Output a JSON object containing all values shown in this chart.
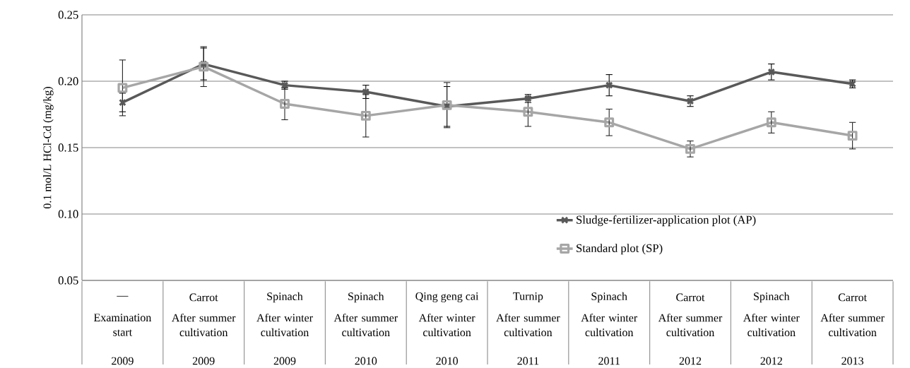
{
  "chart_data": {
    "type": "line",
    "ylabel": "0.1 mol/L HCl-Cd (mg/kg)",
    "categories": [
      "—",
      "Carrot",
      "Spinach",
      "Spinach",
      "Qing geng cai",
      "Turnip",
      "Spinach",
      "Carrot",
      "Spinach",
      "Carrot"
    ],
    "annotations": [
      "Examination start",
      "After summer cultivation",
      "After winter cultivation",
      "After summer cultivation",
      "After winter cultivation",
      "After summer cultivation",
      "After winter cultivation",
      "After summer cultivation",
      "After winter cultivation",
      "After summer cultivation",
      "2009",
      "2009",
      "2009",
      "2010",
      "2010",
      "2011",
      "2011",
      "2012",
      "2012",
      "2013"
    ],
    "series": [
      {
        "name": "Sludge-fertilizer-application plot (AP)",
        "color": "#595959",
        "marker": "cross",
        "values": [
          0.184,
          0.213,
          0.197,
          0.192,
          0.181,
          0.187,
          0.197,
          0.185,
          0.207,
          0.198
        ],
        "errors": [
          0.007,
          0.012,
          0.003,
          0.005,
          0.015,
          0.003,
          0.008,
          0.004,
          0.006,
          0.003
        ]
      },
      {
        "name": "Standard plot (SP)",
        "color": "#a6a6a6",
        "marker": "square",
        "values": [
          0.195,
          0.211,
          0.183,
          0.174,
          0.182,
          0.177,
          0.169,
          0.149,
          0.169,
          0.159
        ],
        "errors": [
          0.021,
          0.015,
          0.012,
          0.016,
          0.017,
          0.011,
          0.01,
          0.006,
          0.008,
          0.01
        ]
      }
    ],
    "ylim": [
      0.05,
      0.25
    ],
    "yticks": [
      0.05,
      {
        "value": 0.1,
        "label": "0.10"
      },
      0.15,
      {
        "value": 0.2,
        "label": "0.20"
      },
      0.25
    ],
    "grid": "y",
    "legend": "bottom right",
    "line_style": "solid"
  }
}
